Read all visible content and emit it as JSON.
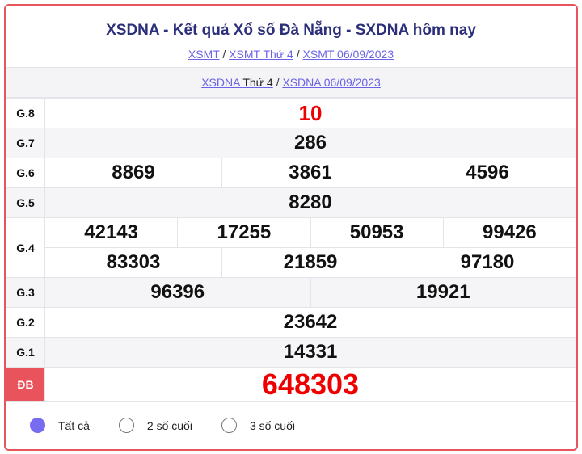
{
  "header": {
    "title": "XSDNA - Kết quả Xổ số Đà Nẵng - SXDNA hôm nay",
    "breadcrumbs": [
      "XSMT",
      "XSMT Thứ 4",
      "XSMT 06/09/2023"
    ]
  },
  "subheader": {
    "link1": "XSDNA",
    "link1_suffix": "Thứ 4",
    "link2": "XSDNA 06/09/2023"
  },
  "prizes": {
    "g8": {
      "label": "G.8",
      "values": [
        "10"
      ]
    },
    "g7": {
      "label": "G.7",
      "values": [
        "286"
      ]
    },
    "g6": {
      "label": "G.6",
      "values": [
        "8869",
        "3861",
        "4596"
      ]
    },
    "g5": {
      "label": "G.5",
      "values": [
        "8280"
      ]
    },
    "g4": {
      "label": "G.4",
      "values": [
        "42143",
        "17255",
        "50953",
        "99426",
        "83303",
        "21859",
        "97180"
      ]
    },
    "g3": {
      "label": "G.3",
      "values": [
        "96396",
        "19921"
      ]
    },
    "g2": {
      "label": "G.2",
      "values": [
        "23642"
      ]
    },
    "g1": {
      "label": "G.1",
      "values": [
        "14331"
      ]
    },
    "db": {
      "label": "ĐB",
      "values": [
        "648303"
      ]
    }
  },
  "filter": {
    "options": [
      "Tất cả",
      "2 số cuối",
      "3 số cuối"
    ],
    "selected": "Tất cả"
  },
  "colors": {
    "accent": "#e8545c",
    "highlight": "#ee0000",
    "link": "#6b63e6",
    "title": "#2c2f7a"
  }
}
